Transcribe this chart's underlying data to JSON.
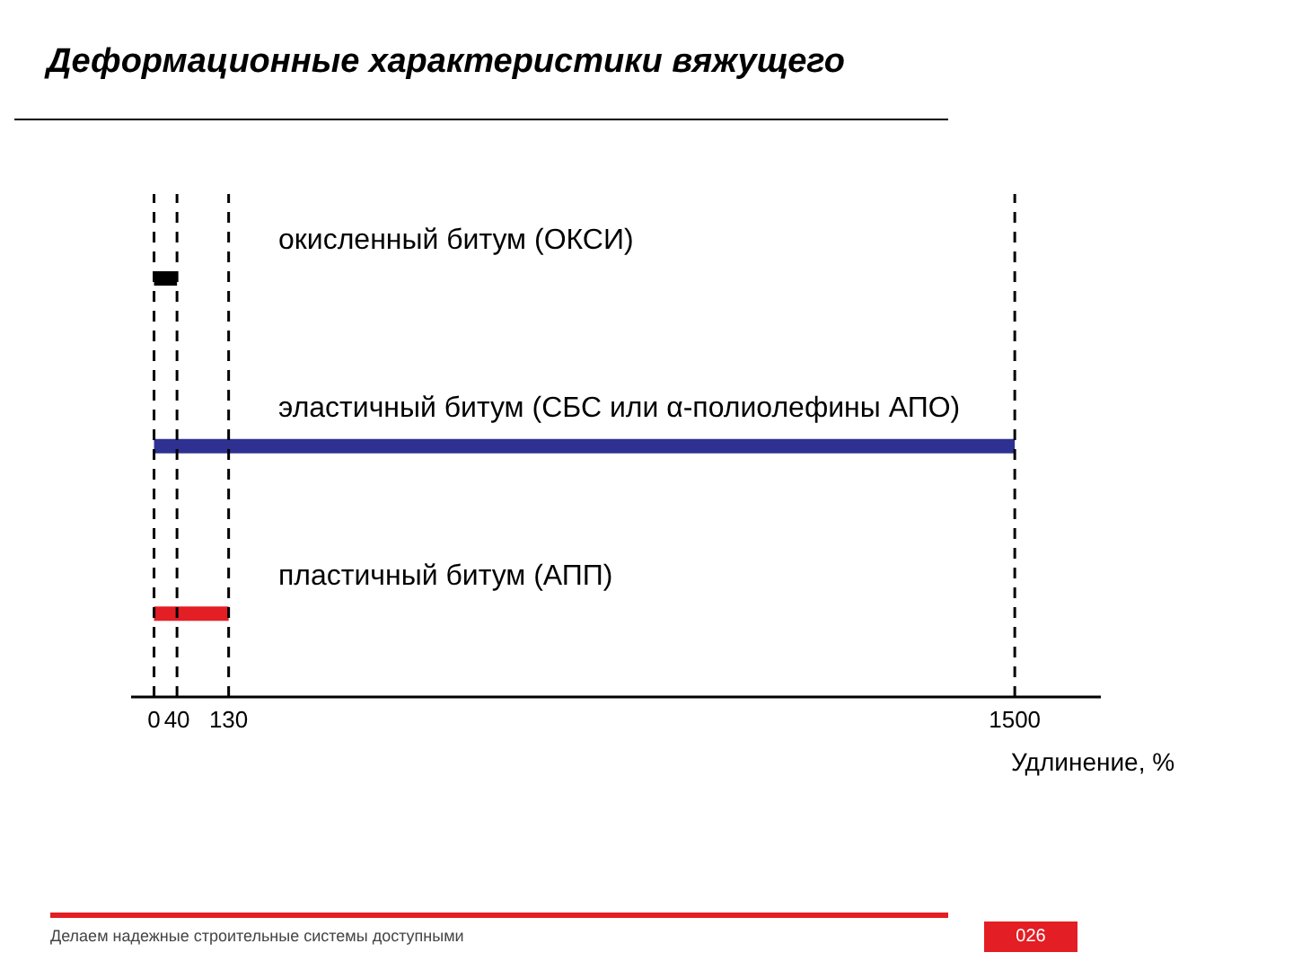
{
  "chart_data": {
    "type": "bar",
    "orientation": "horizontal",
    "title": "Деформационные характеристики вяжущего",
    "xlabel": "Удлинение, %",
    "categories": [
      "окисленный битум (ОКСИ)",
      "эластичный битум (СБС или α-полиолефины АПО)",
      "пластичный битум (АПП)"
    ],
    "values": [
      40,
      1500,
      130
    ],
    "colors": [
      "#000000",
      "#2e3192",
      "#e31e24"
    ],
    "xlim": [
      -40,
      1650
    ],
    "xticks": [
      0,
      40,
      130,
      1500
    ],
    "ref_lines": [
      {
        "axis": "x",
        "value": 0,
        "line_style": "dashed",
        "color": "#000000"
      },
      {
        "axis": "x",
        "value": 40,
        "line_style": "dashed",
        "color": "#000000"
      },
      {
        "axis": "x",
        "value": 130,
        "line_style": "dashed",
        "color": "#000000"
      },
      {
        "axis": "x",
        "value": 1500,
        "line_style": "dashed",
        "color": "#000000"
      }
    ],
    "grid": false,
    "legend": false,
    "annotations": [
      "Делаем надежные строительные системы доступными",
      "026"
    ]
  }
}
